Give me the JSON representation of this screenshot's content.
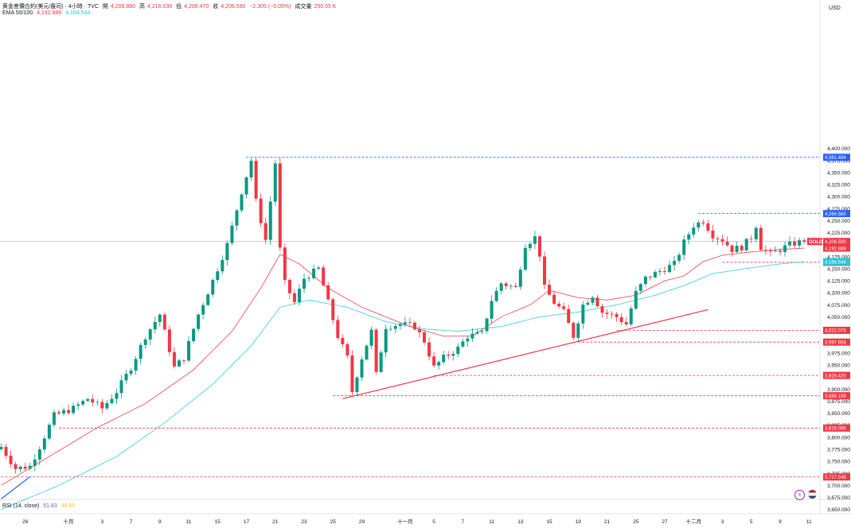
{
  "header": {
    "symbol_title": "黄金差價合約(美元/盎司) · 4小時 · TVC",
    "open_label": "開",
    "open": "4,208.880",
    "high_label": "高",
    "high": "4,216.030",
    "low_label": "低",
    "low": "4,206.470",
    "close_label": "收",
    "close": "4,206.590",
    "change": "−2.305 (−0.05%)",
    "volume_label": "成交量",
    "volume": "250.55 K"
  },
  "indicators": {
    "ema_label": "EMA 50/100",
    "ema50_value": "4,192.888",
    "ema100_value": "4,164.544",
    "rsi_label": "RSI (14, close)",
    "rsi_value": "51.83",
    "rsi_ma_value": "48.80"
  },
  "currency": "USD",
  "colors": {
    "up": "#089981",
    "down": "#f23645",
    "ema50": "#f7525f",
    "ema100": "#4dd0e1",
    "support": "#f23645",
    "resistance": "#2962ff",
    "trendline": "#f23645",
    "gold_tag": "#f23645",
    "ema50_tag": "#f23645",
    "ema100_tag": "#26c6da",
    "last_line": "#b2b5be"
  },
  "icons": {
    "lightning": "lightning-icon",
    "flag": "us-flag-icon"
  },
  "chart_data": {
    "type": "candlestick",
    "symbol": "GOLD",
    "timeframe": "4小時",
    "y_range": [
      3640,
      4420
    ],
    "y_ticks": [
      "4,400.000",
      "4,375.000",
      "4,350.000",
      "4,325.000",
      "4,300.000",
      "4,275.000",
      "4,250.000",
      "4,225.000",
      "4,200.000",
      "4,175.000",
      "4,150.000",
      "4,125.000",
      "4,100.000",
      "4,075.000",
      "4,050.000",
      "4,025.000",
      "4,000.000",
      "3,975.000",
      "3,950.000",
      "3,925.000",
      "3,900.000",
      "3,875.000",
      "3,850.000",
      "3,825.000",
      "3,800.000",
      "3,775.000",
      "3,750.000",
      "3,725.000",
      "3,700.000",
      "3,675.000",
      "3,650.000"
    ],
    "x_ticks": [
      {
        "label": "26",
        "i": 5
      },
      {
        "label": "十月",
        "i": 14
      },
      {
        "label": "3",
        "i": 21
      },
      {
        "label": "7",
        "i": 27
      },
      {
        "label": "9",
        "i": 33
      },
      {
        "label": "11",
        "i": 39
      },
      {
        "label": "15",
        "i": 45
      },
      {
        "label": "17",
        "i": 51
      },
      {
        "label": "21",
        "i": 57
      },
      {
        "label": "23",
        "i": 63
      },
      {
        "label": "25",
        "i": 69
      },
      {
        "label": "29",
        "i": 75
      },
      {
        "label": "十一月",
        "i": 84
      },
      {
        "label": "5",
        "i": 90
      },
      {
        "label": "7",
        "i": 96
      },
      {
        "label": "11",
        "i": 102
      },
      {
        "label": "13",
        "i": 108
      },
      {
        "label": "15",
        "i": 114
      },
      {
        "label": "19",
        "i": 120
      },
      {
        "label": "21",
        "i": 126
      },
      {
        "label": "25",
        "i": 132
      },
      {
        "label": "27",
        "i": 138
      },
      {
        "label": "十二月",
        "i": 144
      },
      {
        "label": "3",
        "i": 150
      },
      {
        "label": "5",
        "i": 156
      },
      {
        "label": "9",
        "i": 162
      },
      {
        "label": "11",
        "i": 168
      }
    ],
    "candle_count": 168,
    "close_anchors": [
      [
        0,
        3780
      ],
      [
        3,
        3735
      ],
      [
        6,
        3740
      ],
      [
        8,
        3780
      ],
      [
        11,
        3845
      ],
      [
        15,
        3860
      ],
      [
        18,
        3880
      ],
      [
        21,
        3860
      ],
      [
        24,
        3895
      ],
      [
        27,
        3945
      ],
      [
        30,
        4010
      ],
      [
        33,
        4055
      ],
      [
        36,
        3945
      ],
      [
        38,
        3965
      ],
      [
        41,
        4055
      ],
      [
        44,
        4125
      ],
      [
        47,
        4200
      ],
      [
        50,
        4310
      ],
      [
        52,
        4375
      ],
      [
        53,
        4290
      ],
      [
        55,
        4210
      ],
      [
        57,
        4370
      ],
      [
        58,
        4190
      ],
      [
        59,
        4120
      ],
      [
        61,
        4080
      ],
      [
        63,
        4130
      ],
      [
        66,
        4150
      ],
      [
        68,
        4080
      ],
      [
        70,
        4010
      ],
      [
        72,
        3965
      ],
      [
        73,
        3895
      ],
      [
        75,
        3965
      ],
      [
        77,
        4020
      ],
      [
        78,
        3930
      ],
      [
        80,
        4030
      ],
      [
        83,
        4035
      ],
      [
        86,
        4030
      ],
      [
        88,
        4000
      ],
      [
        90,
        3945
      ],
      [
        92,
        3965
      ],
      [
        95,
        3985
      ],
      [
        97,
        4010
      ],
      [
        100,
        4015
      ],
      [
        102,
        4085
      ],
      [
        104,
        4120
      ],
      [
        107,
        4110
      ],
      [
        109,
        4200
      ],
      [
        111,
        4215
      ],
      [
        112,
        4180
      ],
      [
        113,
        4110
      ],
      [
        115,
        4080
      ],
      [
        117,
        4060
      ],
      [
        119,
        4010
      ],
      [
        121,
        4075
      ],
      [
        123,
        4095
      ],
      [
        125,
        4060
      ],
      [
        128,
        4050
      ],
      [
        130,
        4035
      ],
      [
        132,
        4100
      ],
      [
        134,
        4130
      ],
      [
        137,
        4145
      ],
      [
        140,
        4160
      ],
      [
        142,
        4205
      ],
      [
        144,
        4240
      ],
      [
        146,
        4250
      ],
      [
        148,
        4220
      ],
      [
        150,
        4210
      ],
      [
        152,
        4190
      ],
      [
        154,
        4195
      ],
      [
        156,
        4215
      ],
      [
        157,
        4240
      ],
      [
        158,
        4195
      ],
      [
        160,
        4180
      ],
      [
        162,
        4190
      ],
      [
        164,
        4200
      ],
      [
        166,
        4205
      ],
      [
        167,
        4206.59
      ]
    ],
    "candle_notes": "close prices are approximate, read off the price axis",
    "ema50_anchors": [
      [
        0,
        3700
      ],
      [
        10,
        3760
      ],
      [
        20,
        3820
      ],
      [
        30,
        3870
      ],
      [
        40,
        3940
      ],
      [
        48,
        4020
      ],
      [
        54,
        4110
      ],
      [
        58,
        4180
      ],
      [
        62,
        4160
      ],
      [
        68,
        4110
      ],
      [
        75,
        4070
      ],
      [
        85,
        4030
      ],
      [
        92,
        4010
      ],
      [
        98,
        4010
      ],
      [
        104,
        4050
      ],
      [
        110,
        4075
      ],
      [
        114,
        4105
      ],
      [
        120,
        4090
      ],
      [
        126,
        4085
      ],
      [
        132,
        4095
      ],
      [
        138,
        4125
      ],
      [
        142,
        4135
      ],
      [
        146,
        4165
      ],
      [
        150,
        4178
      ],
      [
        156,
        4185
      ],
      [
        162,
        4190
      ],
      [
        167,
        4192.888
      ]
    ],
    "ema100_anchors": [
      [
        0,
        3650
      ],
      [
        12,
        3700
      ],
      [
        24,
        3760
      ],
      [
        34,
        3830
      ],
      [
        44,
        3910
      ],
      [
        52,
        3990
      ],
      [
        58,
        4070
      ],
      [
        64,
        4085
      ],
      [
        72,
        4070
      ],
      [
        80,
        4040
      ],
      [
        88,
        4025
      ],
      [
        95,
        4020
      ],
      [
        104,
        4030
      ],
      [
        112,
        4050
      ],
      [
        120,
        4060
      ],
      [
        128,
        4075
      ],
      [
        136,
        4095
      ],
      [
        142,
        4115
      ],
      [
        148,
        4140
      ],
      [
        156,
        4152
      ],
      [
        162,
        4160
      ],
      [
        167,
        4164.544
      ]
    ],
    "horizontal_levels": [
      {
        "price": 4381.484,
        "label": "4,381.484",
        "kind": "resistance",
        "from_i": 51
      },
      {
        "price": 4264.56,
        "label": "4,264.560",
        "kind": "resistance",
        "from_i": 145
      },
      {
        "price": 4163.458,
        "label": "4,163.458",
        "kind": "support",
        "from_i": 150
      },
      {
        "price": 4022.075,
        "label": "4,022.075",
        "kind": "support",
        "from_i": 128
      },
      {
        "price": 3997.658,
        "label": "3,997.658",
        "kind": "support",
        "from_i": 120
      },
      {
        "price": 3928.42,
        "label": "3,928.420",
        "kind": "support",
        "from_i": 90
      },
      {
        "price": 3886.199,
        "label": "3,886.199",
        "kind": "support",
        "from_i": 69
      },
      {
        "price": 3819.095,
        "label": "3,819.095",
        "kind": "support",
        "from_i": 12
      },
      {
        "price": 3717.548,
        "label": "3,717.548",
        "kind": "support",
        "from_i": 0
      }
    ],
    "trendline": {
      "start": [
        71,
        3880
      ],
      "end": [
        147,
        4065
      ]
    },
    "blue_trendline": {
      "start": [
        0,
        3672
      ],
      "end": [
        6,
        3718
      ]
    },
    "price_tags": [
      {
        "label": "GOLD",
        "value": "4,206.590",
        "price": 4206.59,
        "kind": "gold"
      },
      {
        "label": "",
        "value": "4,192.888",
        "price": 4192.888,
        "kind": "ema50"
      },
      {
        "label": "",
        "value": "4,164.544",
        "price": 4164.544,
        "kind": "ema100"
      }
    ],
    "grid": false
  }
}
